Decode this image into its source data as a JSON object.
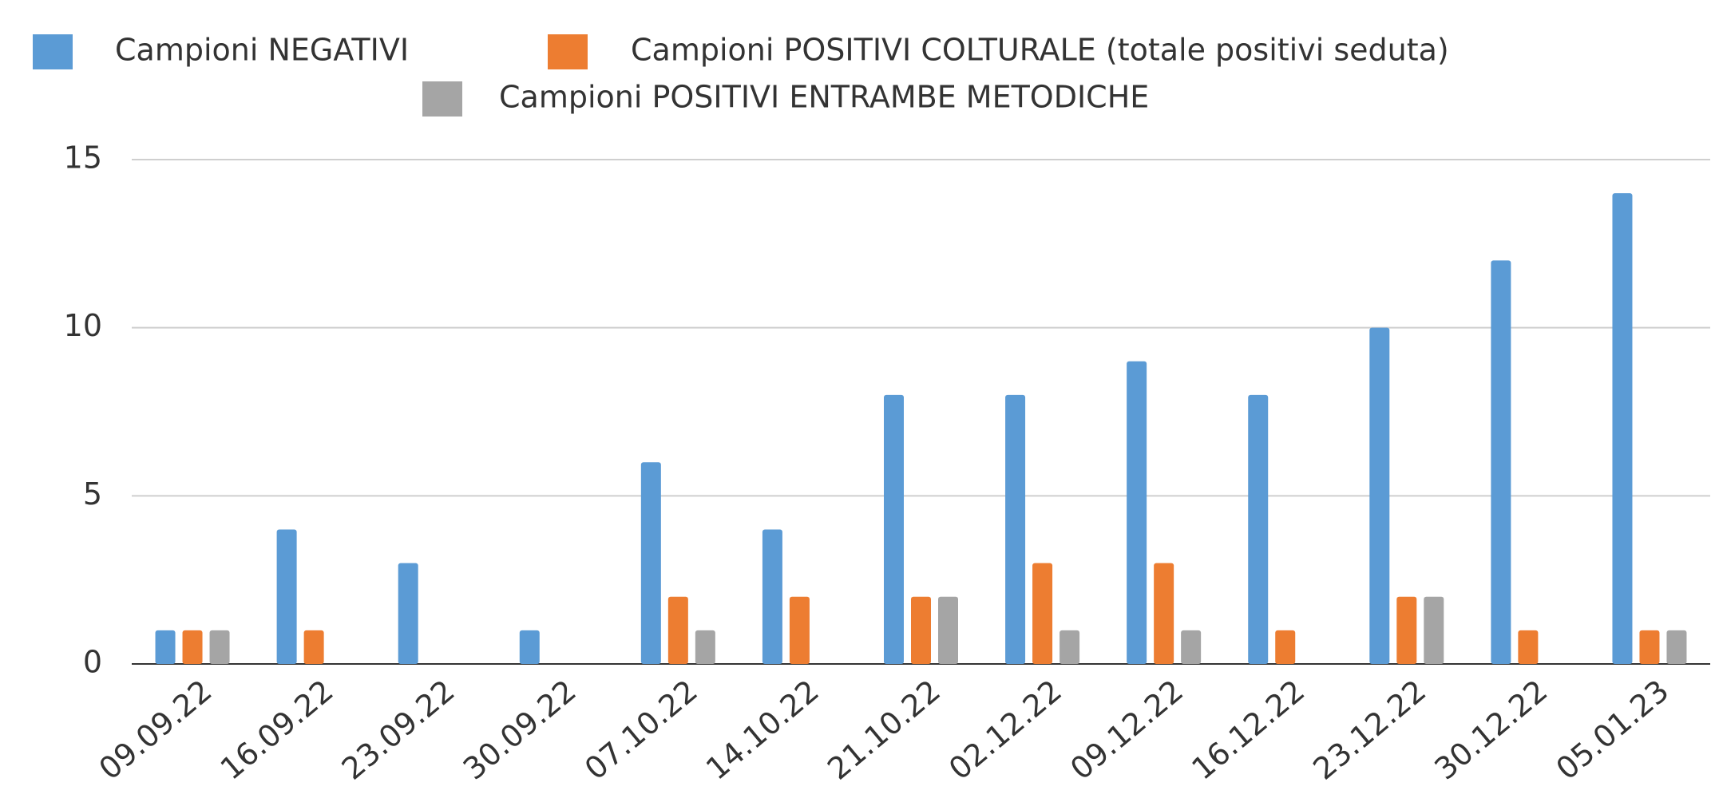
{
  "chart_data": {
    "type": "bar",
    "categories": [
      "09.09.22",
      "16.09.22",
      "23.09.22",
      "30.09.22",
      "07.10.22",
      "14.10.22",
      "21.10.22",
      "02.12.22",
      "09.12.22",
      "16.12.22",
      "23.12.22",
      "30.12.22",
      "05.01.23"
    ],
    "series": [
      {
        "name": "Campioni NEGATIVI",
        "color": "#5b9bd5",
        "values": [
          1,
          4,
          3,
          1,
          6,
          4,
          8,
          8,
          9,
          8,
          10,
          12,
          14
        ]
      },
      {
        "name": "Campioni POSITIVI COLTURALE (totale positivi seduta)",
        "color": "#ed7d31",
        "values": [
          1,
          1,
          0,
          0,
          2,
          2,
          2,
          3,
          3,
          1,
          2,
          1,
          1
        ]
      },
      {
        "name": "Campioni POSITIVI ENTRAMBE METODICHE",
        "color": "#a5a5a5",
        "values": [
          1,
          0,
          0,
          0,
          1,
          0,
          2,
          1,
          1,
          0,
          2,
          0,
          1
        ]
      }
    ],
    "ylim": [
      0,
      15
    ],
    "yticks": [
      0,
      5,
      10,
      15
    ],
    "grid": true,
    "legend": "top"
  }
}
